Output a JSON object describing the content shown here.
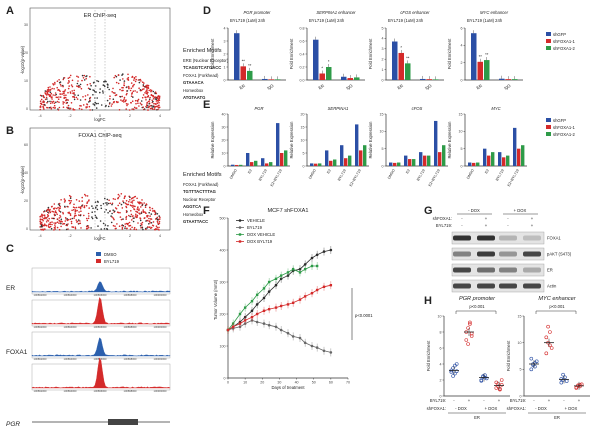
{
  "panels": {
    "A": {
      "letter": "A",
      "title": "ER ChIP-seq",
      "ylabel": "-log10(p-value)",
      "xlabel": "logFC",
      "xticks": [
        "-4",
        "-2",
        "0",
        "2",
        "4"
      ],
      "yticks": [
        "0",
        "10",
        "20",
        "30"
      ],
      "motifs_title": "Enriched Motifs",
      "motifs": [
        {
          "name": "ERE (Nuclear Receptor)",
          "seq": "TCAGGTCATGACC"
        },
        {
          "name": "FOXA1 (Forkhead)",
          "seq": "GTAAACA"
        },
        {
          "name": "Homeobox",
          "seq": "ATGTAATG"
        }
      ]
    },
    "B": {
      "letter": "B",
      "title": "FOXA1 ChIP-seq",
      "ylabel": "-log10(p-value)",
      "xlabel": "logFC",
      "xticks": [
        "-4",
        "-2",
        "0",
        "2",
        "4"
      ],
      "yticks": [
        "0",
        "20",
        "40",
        "60"
      ],
      "motifs_title": "Enriched Motifs",
      "motifs": [
        {
          "name": "FOXA1 (Forkhead)",
          "seq": "TGTTTACTTTAG"
        },
        {
          "name": "Nuclear Receptor",
          "seq": "AGGTCA"
        },
        {
          "name": "Homeobox",
          "seq": "GTAATTACC"
        }
      ]
    },
    "C": {
      "letter": "C",
      "legend": [
        {
          "label": "DMSO",
          "color": "#2b5fad"
        },
        {
          "label": "BYL719",
          "color": "#d42a2a"
        }
      ],
      "row_labels": [
        "ER",
        "FOXA1",
        "PGR"
      ],
      "track_ticks": [
        "100892000",
        "100894000",
        "100896000",
        "100898000",
        "100900000"
      ]
    },
    "D": {
      "letter": "D",
      "panel_title_label": "BYL719 (1uM) 24h",
      "ylabel": "Fold Enrichment",
      "groups": [
        "ER",
        "IgG"
      ],
      "legend": [
        {
          "label": "shGFP",
          "color": "#2b4fa5"
        },
        {
          "label": "shFOXA1-1",
          "color": "#d42a2a"
        },
        {
          "label": "shFOXA1-2",
          "color": "#2e9b48"
        }
      ],
      "subplots": [
        {
          "title": "PGR promoter",
          "ylim": [
            0,
            4
          ],
          "yticks": [
            "0",
            "1",
            "2",
            "3",
            "4"
          ],
          "values": [
            [
              3.6,
              1.05,
              0.7
            ],
            [
              0.08,
              0.05,
              0.05
            ]
          ],
          "stars": [
            "**",
            "**"
          ]
        },
        {
          "title": "SERPINA1 enhancer",
          "ylim": [
            0,
            0.8
          ],
          "yticks": [
            "0.0",
            "0.2",
            "0.4",
            "0.6",
            "0.8"
          ],
          "values": [
            [
              0.62,
              0.1,
              0.2
            ],
            [
              0.05,
              0.03,
              0.04
            ]
          ],
          "stars": [
            "*",
            "*"
          ]
        },
        {
          "title": "cFOS enhancer",
          "ylim": [
            0,
            5
          ],
          "yticks": [
            "0",
            "1",
            "2",
            "3",
            "4",
            "5"
          ],
          "values": [
            [
              3.7,
              2.6,
              1.6
            ],
            [
              0.1,
              0.08,
              0.06
            ]
          ],
          "stars": [
            "*",
            "**"
          ]
        },
        {
          "title": "MYC enhancer",
          "ylim": [
            0,
            6
          ],
          "yticks": [
            "0",
            "2",
            "4",
            "6"
          ],
          "values": [
            [
              5.4,
              2.1,
              2.3
            ],
            [
              0.15,
              0.1,
              0.1
            ]
          ],
          "stars": [
            "**",
            "**"
          ]
        }
      ]
    },
    "E": {
      "letter": "E",
      "ylabel": "Relative Expression",
      "categories": [
        "DMSO",
        "E2",
        "BYL719",
        "E2+BYL719"
      ],
      "legend": [
        {
          "label": "shGFP",
          "color": "#2b4fa5"
        },
        {
          "label": "shFOXA1-1",
          "color": "#d42a2a"
        },
        {
          "label": "shFOXA1-2",
          "color": "#2e9b48"
        }
      ],
      "subplots": [
        {
          "title": "PGR",
          "ylim": [
            0,
            40
          ],
          "yticks": [
            "0",
            "10",
            "20",
            "30",
            "40"
          ],
          "values": [
            [
              1,
              0.8,
              0.9
            ],
            [
              10,
              3,
              4
            ],
            [
              6,
              2,
              3
            ],
            [
              33,
              10,
              12
            ]
          ]
        },
        {
          "title": "SERPINA1",
          "ylim": [
            0,
            20
          ],
          "yticks": [
            "0",
            "5",
            "10",
            "15",
            "20"
          ],
          "values": [
            [
              1,
              0.9,
              1
            ],
            [
              6,
              2,
              2.5
            ],
            [
              8,
              3,
              4
            ],
            [
              16,
              6,
              8
            ]
          ]
        },
        {
          "title": "cFOS",
          "ylim": [
            0,
            15
          ],
          "yticks": [
            "0",
            "5",
            "10",
            "15"
          ],
          "values": [
            [
              1,
              0.9,
              1
            ],
            [
              3,
              2,
              2
            ],
            [
              4,
              3,
              3
            ],
            [
              13,
              4,
              6
            ]
          ]
        },
        {
          "title": "MYC",
          "ylim": [
            0,
            15
          ],
          "yticks": [
            "0",
            "5",
            "10",
            "15"
          ],
          "values": [
            [
              1,
              0.9,
              1
            ],
            [
              5,
              3,
              4
            ],
            [
              4,
              2.5,
              3
            ],
            [
              11,
              5,
              6
            ]
          ]
        }
      ]
    },
    "F": {
      "letter": "F",
      "title": "MCF7 shFOXA1",
      "ylabel": "Tumor Volume (mm3)",
      "xlabel": "Days of treatment",
      "ylim": [
        0,
        500
      ],
      "yticks": [
        "0",
        "100",
        "200",
        "300",
        "400",
        "500"
      ],
      "xlim": [
        0,
        70
      ],
      "xticks": [
        "0",
        "10",
        "20",
        "30",
        "40",
        "50",
        "60",
        "70"
      ],
      "pvalue": "p<0.0001",
      "series": [
        {
          "name": "VEHICLE",
          "color": "#2b2b2b",
          "marker": "circle",
          "x": [
            0,
            3,
            7,
            10,
            14,
            17,
            21,
            24,
            28,
            31,
            35,
            38,
            42,
            45,
            49,
            52,
            56,
            60
          ],
          "y": [
            150,
            160,
            175,
            190,
            210,
            230,
            250,
            270,
            290,
            310,
            320,
            335,
            340,
            355,
            375,
            385,
            395,
            400
          ]
        },
        {
          "name": "BYL719",
          "color": "#666666",
          "marker": "circle",
          "x": [
            0,
            3,
            7,
            10,
            14,
            17,
            21,
            24,
            28,
            31,
            35,
            38,
            42,
            45,
            49,
            52,
            56,
            60
          ],
          "y": [
            150,
            155,
            160,
            170,
            180,
            175,
            170,
            165,
            160,
            150,
            140,
            130,
            125,
            110,
            100,
            95,
            85,
            80
          ]
        },
        {
          "name": "DOX VEHICLE",
          "color": "#2e9b48",
          "marker": "square",
          "x": [
            0,
            3,
            7,
            10,
            14,
            17,
            21,
            24,
            28,
            31,
            35,
            38,
            42,
            45,
            49,
            52
          ],
          "y": [
            150,
            170,
            200,
            220,
            240,
            260,
            280,
            300,
            310,
            320,
            330,
            340,
            330,
            340,
            350,
            350
          ]
        },
        {
          "name": "DOX BYL719",
          "color": "#d42a2a",
          "marker": "square",
          "x": [
            0,
            3,
            7,
            10,
            14,
            17,
            21,
            24,
            28,
            31,
            35,
            38,
            42,
            45,
            49,
            52,
            56,
            60
          ],
          "y": [
            150,
            160,
            170,
            180,
            190,
            200,
            210,
            215,
            220,
            225,
            230,
            235,
            245,
            255,
            265,
            275,
            285,
            290
          ]
        }
      ]
    },
    "G": {
      "letter": "G",
      "dox_labels": [
        "- DOX",
        "+ DOX"
      ],
      "row1_label": "shFOXA1:",
      "row2_label": "BYL719:",
      "signs": [
        "-",
        "+",
        "-",
        "+"
      ],
      "bands": [
        "FOXA1",
        "pAKT (S473)",
        "ER",
        "Actin"
      ]
    },
    "H": {
      "letter": "H",
      "pvalue": "p<0.001",
      "ylabel": "Fold Enrichment",
      "row1_label": "BYL719:",
      "row2_label": "shFOXA1:",
      "signs": [
        "-",
        "+",
        "-",
        "+"
      ],
      "dox_labels": [
        "- DOX",
        "+ DOX"
      ],
      "group_label": "ER",
      "subplots": [
        {
          "title": "PGR promoter",
          "ylim": [
            0,
            10
          ],
          "yticks": [
            "0",
            "2",
            "4",
            "6",
            "8",
            "10"
          ],
          "groups": [
            {
              "color": "#2b4fa5",
              "points": [
                3,
                3.5,
                2.8,
                4,
                3.2,
                2.5,
                3.8,
                3.1
              ],
              "mean": 3.2
            },
            {
              "color": "#d42a2a",
              "points": [
                7,
                8.5,
                9,
                7.5,
                8,
                6.5,
                9.2,
                7.8
              ],
              "mean": 8
            },
            {
              "color": "#2b4fa5",
              "points": [
                2,
                2.4,
                2.6,
                2.2,
                1.9,
                2.5,
                2.3
              ],
              "mean": 2.3
            },
            {
              "color": "#d42a2a",
              "points": [
                1,
                1.5,
                0.8,
                2,
                1.7,
                1.2,
                0.9,
                1.4
              ],
              "mean": 1.3
            }
          ]
        },
        {
          "title": "MYC enhancer",
          "ylim": [
            0,
            15
          ],
          "yticks": [
            "0",
            "5",
            "10",
            "15"
          ],
          "groups": [
            {
              "color": "#2b4fa5",
              "points": [
                5,
                6,
                5.5,
                6.5,
                7,
                5.8,
                6.2
              ],
              "mean": 6
            },
            {
              "color": "#d42a2a",
              "points": [
                8,
                10,
                12,
                9,
                11,
                13,
                9.5
              ],
              "mean": 10
            },
            {
              "color": "#2b4fa5",
              "points": [
                2.5,
                3,
                3.5,
                2.8,
                3.2,
                4
              ],
              "mean": 3.1
            },
            {
              "color": "#d42a2a",
              "points": [
                1.5,
                2,
                1.8,
                2.2,
                1.6,
                1.9,
                2.1
              ],
              "mean": 1.9
            }
          ]
        }
      ]
    }
  }
}
